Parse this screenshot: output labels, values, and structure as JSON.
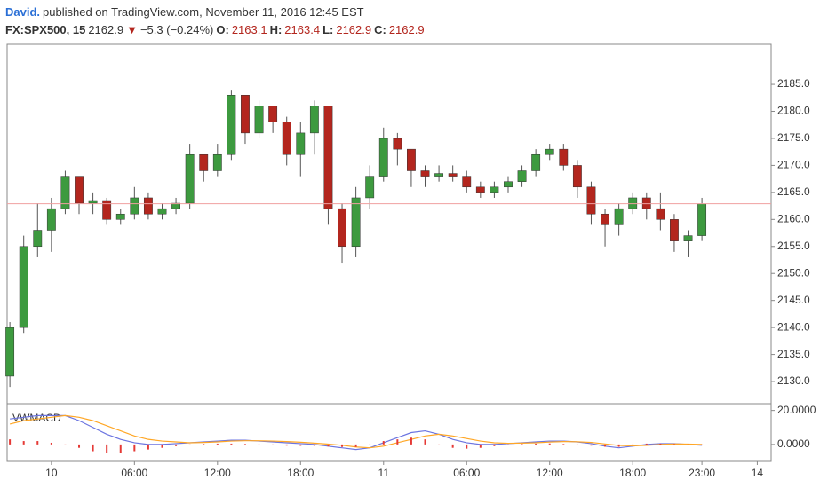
{
  "header": {
    "author": "David.",
    "published": "published on TradingView.com, November 11, 2016 12:45 EST",
    "symbol": "FX:SPX500, 15",
    "last": 2162.9,
    "arrow": "▼",
    "change": "−5.3 (−0.24%)",
    "o_label": "O:",
    "open": 2163.1,
    "h_label": "H:",
    "high": 2163.4,
    "l_label": "L:",
    "low": 2162.9,
    "c_label": "C:",
    "close": 2162.9
  },
  "chart_data": [
    {
      "type": "candlestick",
      "up_color": "#3d9a3f",
      "down_color": "#b3261e",
      "wick_color": "#555555",
      "last_line_color": "#f0a0a0",
      "x": [
        -3,
        -2,
        -1,
        0,
        1,
        2,
        3,
        4,
        5,
        6,
        7,
        8,
        9,
        10,
        11,
        12,
        13,
        14,
        15,
        16,
        17,
        18,
        19,
        20,
        21,
        22,
        23,
        24,
        25,
        26,
        27,
        28,
        29,
        30,
        31,
        32,
        33,
        34,
        35,
        36,
        37,
        38,
        39,
        40,
        41,
        42,
        43,
        44,
        45,
        46,
        47
      ],
      "open": [
        2131,
        2140,
        2155,
        2158,
        2162,
        2168,
        2163,
        2163.5,
        2160,
        2161,
        2164,
        2161,
        2162,
        2163,
        2172,
        2169,
        2172,
        2183,
        2176,
        2181,
        2178,
        2172,
        2176,
        2181,
        2162,
        2155,
        2164,
        2168,
        2175,
        2173,
        2169,
        2168,
        2168.5,
        2168,
        2166,
        2165,
        2166,
        2167,
        2169,
        2172,
        2173,
        2170,
        2166,
        2161,
        2159,
        2162,
        2164,
        2162,
        2160,
        2156,
        2157
      ],
      "high": [
        2141,
        2157,
        2163,
        2164,
        2169,
        2168,
        2165,
        2164,
        2162,
        2166,
        2165,
        2163,
        2164,
        2174,
        2172,
        2174,
        2184,
        2183,
        2182,
        2181,
        2179,
        2178,
        2182,
        2181,
        2163,
        2166,
        2170,
        2177,
        2176,
        2173,
        2170,
        2170,
        2170,
        2169,
        2167,
        2167,
        2168,
        2170,
        2173,
        2174,
        2174,
        2171,
        2167,
        2162,
        2163,
        2165,
        2165,
        2165,
        2161,
        2158,
        2164
      ],
      "low": [
        2129,
        2139,
        2153,
        2154,
        2161,
        2161,
        2161,
        2159,
        2159,
        2160,
        2160,
        2160,
        2161,
        2162,
        2167,
        2168,
        2171,
        2174,
        2175,
        2176,
        2170,
        2168,
        2172,
        2159,
        2152,
        2153,
        2162,
        2167,
        2170,
        2166,
        2166,
        2167,
        2167,
        2165,
        2164,
        2164,
        2165,
        2166,
        2168,
        2171,
        2169,
        2164,
        2159,
        2155,
        2157,
        2161,
        2160,
        2158,
        2154,
        2153,
        2156
      ],
      "close": [
        2140,
        2155,
        2158,
        2162,
        2168,
        2163,
        2163.5,
        2160,
        2161,
        2164,
        2161,
        2162,
        2163,
        2172,
        2169,
        2172,
        2183,
        2176,
        2181,
        2178,
        2172,
        2176,
        2181,
        2162,
        2155,
        2164,
        2168,
        2175,
        2173,
        2169,
        2168,
        2168.5,
        2168,
        2166,
        2165,
        2166,
        2167,
        2169,
        2172,
        2173,
        2170,
        2166,
        2161,
        2159,
        2162,
        2164,
        2162,
        2160,
        2156,
        2157,
        2162.9
      ],
      "xlim": [
        -3.2,
        52
      ],
      "xticks": [
        {
          "value": 0,
          "label": "10"
        },
        {
          "value": 6,
          "label": "06:00"
        },
        {
          "value": 12,
          "label": "12:00"
        },
        {
          "value": 18,
          "label": "18:00"
        },
        {
          "value": 24,
          "label": "11"
        },
        {
          "value": 30,
          "label": "06:00"
        },
        {
          "value": 36,
          "label": "12:00"
        },
        {
          "value": 42,
          "label": "18:00"
        },
        {
          "value": 47,
          "label": "23:00"
        },
        {
          "value": 51,
          "label": "14"
        }
      ],
      "ylim": [
        2125.9,
        2192.4
      ],
      "yticks": [
        {
          "value": 2130,
          "label": "2130.0"
        },
        {
          "value": 2135,
          "label": "2135.0"
        },
        {
          "value": 2140,
          "label": "2140.0"
        },
        {
          "value": 2145,
          "label": "2145.0"
        },
        {
          "value": 2150,
          "label": "2150.0"
        },
        {
          "value": 2155,
          "label": "2155.0"
        },
        {
          "value": 2160,
          "label": "2160.0"
        },
        {
          "value": 2165,
          "label": "2165.0"
        },
        {
          "value": 2170,
          "label": "2170.0"
        },
        {
          "value": 2175,
          "label": "2175.0"
        },
        {
          "value": 2180,
          "label": "2180.0"
        },
        {
          "value": 2185,
          "label": "2185.0"
        }
      ]
    },
    {
      "type": "line",
      "title": "VWMACD",
      "x": [
        -3,
        -2,
        -1,
        0,
        1,
        2,
        3,
        4,
        5,
        6,
        7,
        8,
        9,
        10,
        11,
        12,
        13,
        14,
        15,
        16,
        17,
        18,
        19,
        20,
        21,
        22,
        23,
        24,
        25,
        26,
        27,
        28,
        29,
        30,
        31,
        32,
        33,
        34,
        35,
        36,
        37,
        38,
        39,
        40,
        41,
        42,
        43,
        44,
        45,
        46,
        47
      ],
      "series": [
        {
          "color": "#6b74e0",
          "values": [
            15,
            16,
            17,
            17,
            17,
            14,
            10,
            6,
            3,
            1,
            0,
            0,
            0.5,
            1,
            1.5,
            2,
            2.5,
            2.5,
            2,
            1.5,
            1,
            0.5,
            0,
            -1,
            -2,
            -3,
            -2,
            1,
            4,
            7,
            8,
            6,
            3,
            1,
            0,
            0,
            0.5,
            1,
            1.5,
            2,
            2,
            1.5,
            0.5,
            -1,
            -2,
            -1,
            0,
            0.5,
            0.5,
            0,
            -0.5
          ]
        },
        {
          "color": "#ffa726",
          "values": [
            12,
            14,
            15,
            16,
            17,
            16,
            14,
            11,
            8,
            5,
            3,
            2,
            1.5,
            1,
            1.2,
            1.5,
            2,
            2.2,
            2.2,
            2,
            1.7,
            1.3,
            0.8,
            0.2,
            -0.5,
            -1.5,
            -2,
            -1,
            1,
            3,
            5,
            6,
            5,
            3.5,
            2,
            1,
            0.7,
            0.8,
            1,
            1.4,
            1.7,
            1.6,
            1.2,
            0.3,
            -0.6,
            -0.8,
            -0.5,
            0,
            0.3,
            0.2,
            0
          ]
        },
        {
          "type": "bar",
          "color": "#e53935",
          "values": [
            3,
            2,
            2,
            1,
            0,
            -2,
            -4,
            -5,
            -5,
            -4,
            -3,
            -2,
            -1,
            0,
            0.3,
            0.5,
            0.5,
            0.3,
            -0.2,
            -0.5,
            -0.7,
            -0.8,
            -0.8,
            -1.2,
            -1.5,
            -1.5,
            0,
            2,
            3,
            4,
            3,
            0,
            -2,
            -2.5,
            -2,
            -1,
            -0.2,
            0.2,
            0.5,
            0.6,
            0.3,
            -0.1,
            -0.7,
            -1.3,
            -1.4,
            -0.2,
            0.5,
            0.5,
            0.2,
            -0.2,
            -0.5
          ]
        }
      ],
      "xlim": [
        -3.2,
        52
      ],
      "ylim": [
        -10,
        24
      ],
      "yticks": [
        {
          "value": 0,
          "label": "0.0000"
        },
        {
          "value": 20,
          "label": "20.0000"
        }
      ]
    }
  ]
}
